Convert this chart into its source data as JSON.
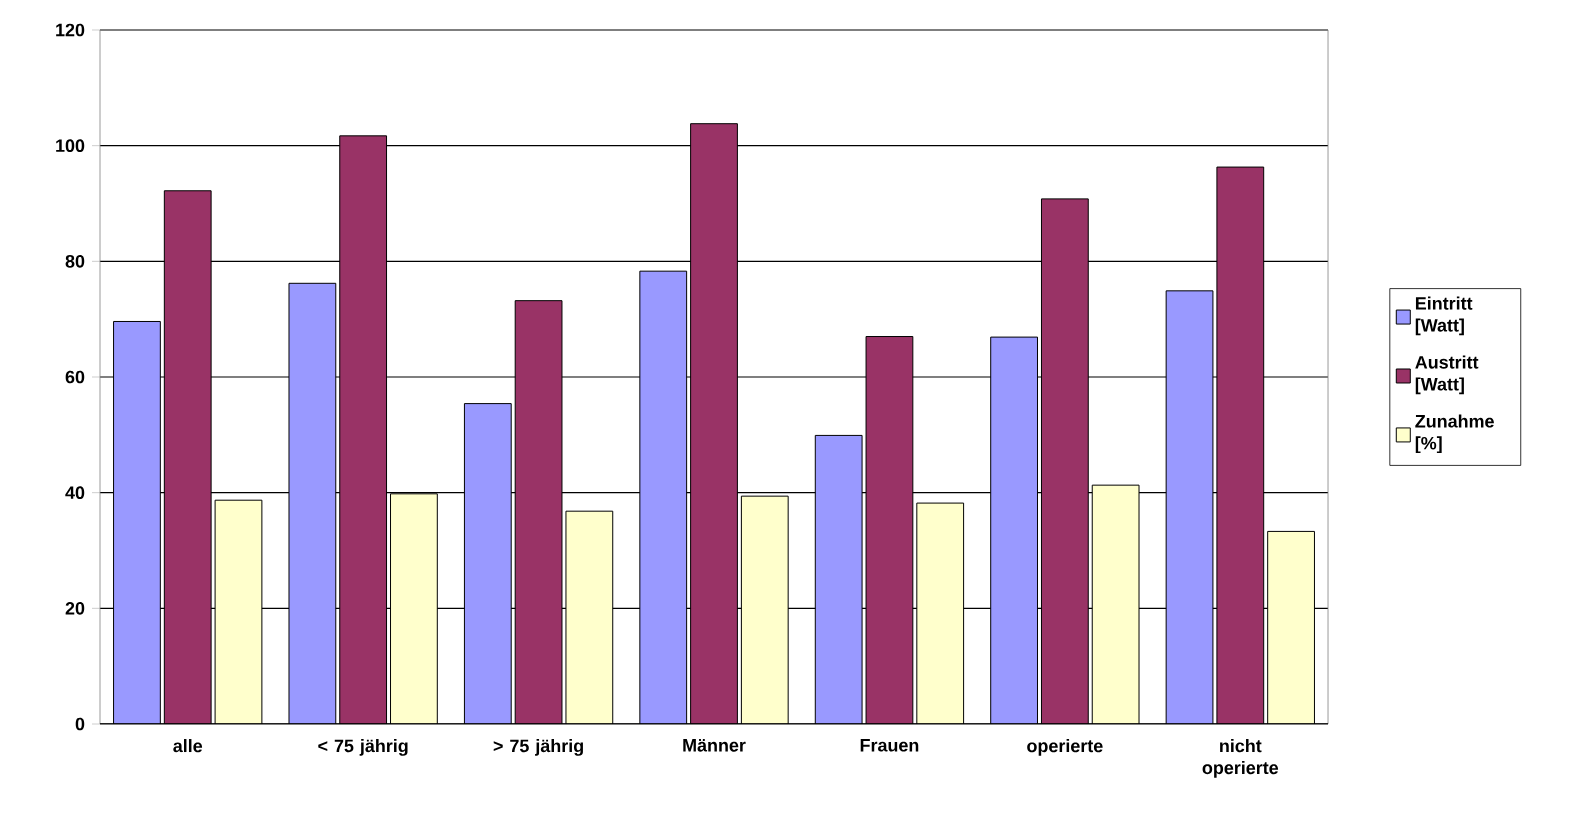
{
  "chart_data": {
    "type": "bar",
    "categories": [
      "alle",
      "< 75 jährig",
      "> 75 jährig",
      "Männer",
      "Frauen",
      "operierte",
      "nicht operierte"
    ],
    "series": [
      {
        "name": "Eintritt [Watt]",
        "color": "#9999ff",
        "values": [
          69.6,
          76.2,
          55.4,
          78.3,
          49.9,
          66.9,
          74.9
        ]
      },
      {
        "name": "Austritt [Watt]",
        "color": "#993366",
        "values": [
          92.2,
          101.7,
          73.2,
          103.8,
          67.0,
          90.8,
          96.3
        ]
      },
      {
        "name": "Zunahme [%]",
        "color": "#ffffcc",
        "values": [
          38.7,
          39.8,
          36.8,
          39.4,
          38.2,
          41.3,
          33.3
        ]
      }
    ],
    "ylim": [
      0,
      120
    ],
    "yticks": [
      0,
      20,
      40,
      60,
      80,
      100,
      120
    ],
    "grid": "y",
    "legend": "right"
  }
}
